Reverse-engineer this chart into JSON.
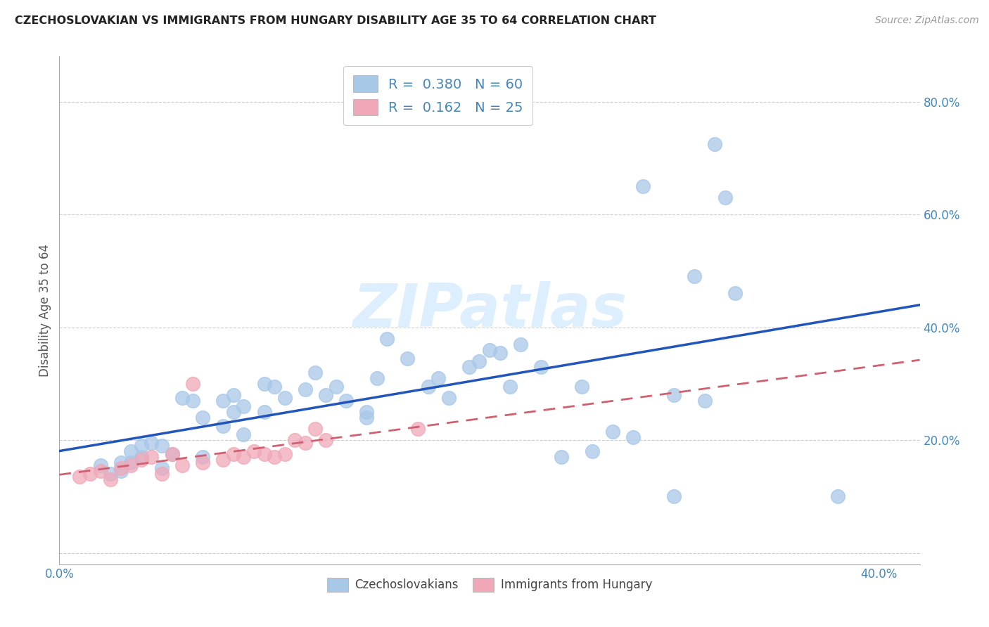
{
  "title": "CZECHOSLOVAKIAN VS IMMIGRANTS FROM HUNGARY DISABILITY AGE 35 TO 64 CORRELATION CHART",
  "source": "Source: ZipAtlas.com",
  "ylabel": "Disability Age 35 to 64",
  "xlim": [
    0.0,
    0.42
  ],
  "ylim": [
    -0.02,
    0.88
  ],
  "xticks": [
    0.0,
    0.05,
    0.1,
    0.15,
    0.2,
    0.25,
    0.3,
    0.35,
    0.4
  ],
  "xticklabels": [
    "0.0%",
    "",
    "",
    "",
    "",
    "",
    "",
    "",
    "40.0%"
  ],
  "yticks": [
    0.0,
    0.2,
    0.4,
    0.6,
    0.8
  ],
  "yticklabels": [
    "",
    "20.0%",
    "40.0%",
    "60.0%",
    "80.0%"
  ],
  "legend1_R": "0.380",
  "legend1_N": "60",
  "legend2_R": "0.162",
  "legend2_N": "25",
  "blue_color": "#a8c8e8",
  "pink_color": "#f0a8b8",
  "blue_line_color": "#2255bb",
  "pink_line_color": "#d06070",
  "watermark_color": "#ddeeff",
  "blue_scatter_x": [
    0.02,
    0.025,
    0.03,
    0.03,
    0.035,
    0.035,
    0.04,
    0.04,
    0.045,
    0.05,
    0.05,
    0.055,
    0.06,
    0.065,
    0.07,
    0.07,
    0.08,
    0.08,
    0.085,
    0.085,
    0.09,
    0.09,
    0.1,
    0.1,
    0.105,
    0.11,
    0.12,
    0.125,
    0.13,
    0.135,
    0.14,
    0.15,
    0.155,
    0.16,
    0.17,
    0.18,
    0.185,
    0.19,
    0.2,
    0.205,
    0.215,
    0.225,
    0.235,
    0.245,
    0.255,
    0.27,
    0.285,
    0.3,
    0.3,
    0.31,
    0.32,
    0.325,
    0.33,
    0.38,
    0.15,
    0.21,
    0.22,
    0.26,
    0.28,
    0.315
  ],
  "blue_scatter_y": [
    0.155,
    0.14,
    0.16,
    0.145,
    0.16,
    0.18,
    0.17,
    0.19,
    0.195,
    0.15,
    0.19,
    0.175,
    0.275,
    0.27,
    0.17,
    0.24,
    0.225,
    0.27,
    0.25,
    0.28,
    0.21,
    0.26,
    0.3,
    0.25,
    0.295,
    0.275,
    0.29,
    0.32,
    0.28,
    0.295,
    0.27,
    0.25,
    0.31,
    0.38,
    0.345,
    0.295,
    0.31,
    0.275,
    0.33,
    0.34,
    0.355,
    0.37,
    0.33,
    0.17,
    0.295,
    0.215,
    0.65,
    0.28,
    0.1,
    0.49,
    0.725,
    0.63,
    0.46,
    0.1,
    0.24,
    0.36,
    0.295,
    0.18,
    0.205,
    0.27
  ],
  "pink_scatter_x": [
    0.01,
    0.015,
    0.02,
    0.025,
    0.03,
    0.035,
    0.04,
    0.045,
    0.05,
    0.055,
    0.06,
    0.065,
    0.07,
    0.08,
    0.085,
    0.09,
    0.095,
    0.1,
    0.105,
    0.11,
    0.115,
    0.12,
    0.125,
    0.13,
    0.175
  ],
  "pink_scatter_y": [
    0.135,
    0.14,
    0.145,
    0.13,
    0.15,
    0.155,
    0.165,
    0.17,
    0.14,
    0.175,
    0.155,
    0.3,
    0.16,
    0.165,
    0.175,
    0.17,
    0.18,
    0.175,
    0.17,
    0.175,
    0.2,
    0.195,
    0.22,
    0.2,
    0.22
  ]
}
